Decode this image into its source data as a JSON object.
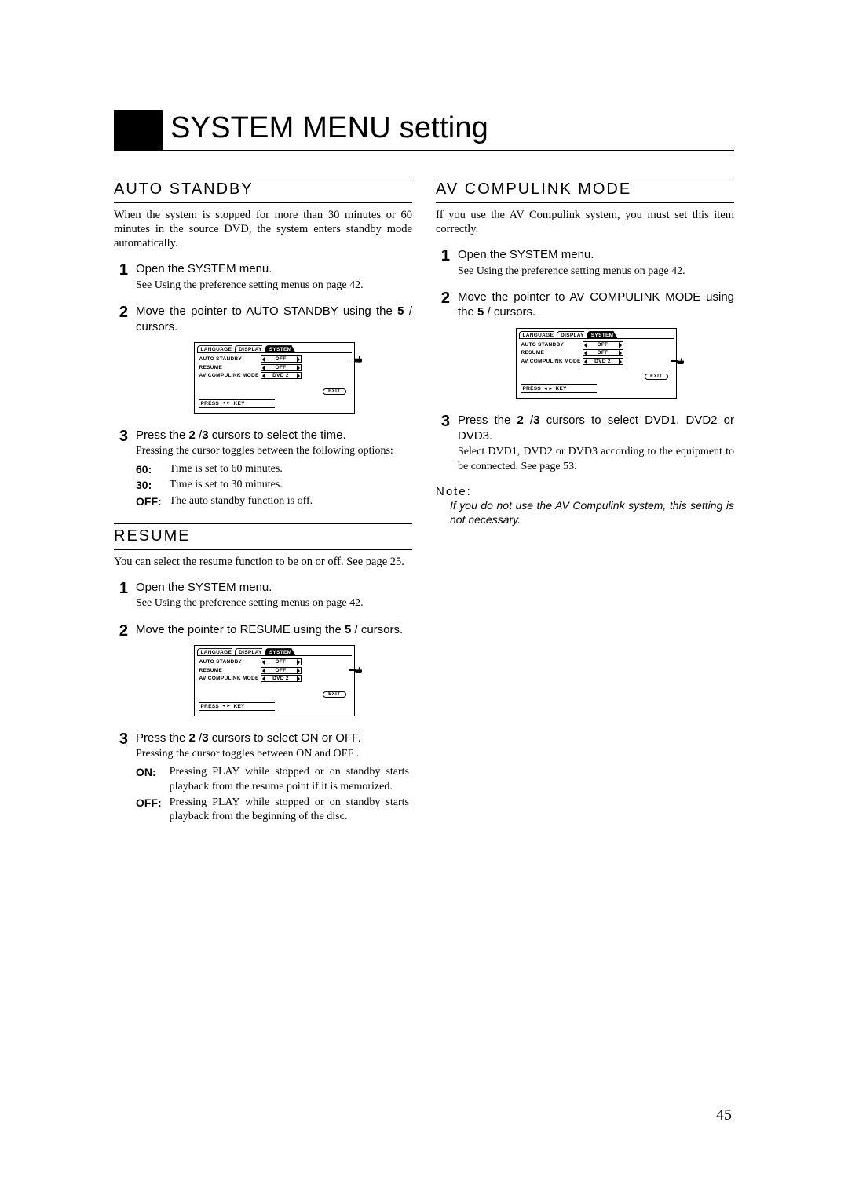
{
  "page_number": "45",
  "title": "SYSTEM MENU setting",
  "menu": {
    "tabs": [
      "LANGUAGE",
      "DISPLAY",
      "SYSTEM"
    ],
    "active_tab_index": 2,
    "rows": [
      {
        "label": "AUTO STANDBY",
        "value": "OFF"
      },
      {
        "label": "RESUME",
        "value": "OFF"
      },
      {
        "label": "AV COMPULINK MODE",
        "value": "DVD 2"
      }
    ],
    "exit": "EXIT",
    "footer": "PRESS",
    "footer_key": "KEY"
  },
  "left": {
    "auto_standby": {
      "title": "AUTO STANDBY",
      "intro": "When the system is stopped for more than 30 minutes or 60 minutes in the source DVD, the system enters standby mode automatically.",
      "step1_head": "Open the SYSTEM menu.",
      "step1_sub": "See  Using the preference setting menus  on page 42.",
      "step2_head_a": "Move the pointer to AUTO STANDBY using the ",
      "step2_head_b": "5",
      "step2_head_c": " /     cursors.",
      "step3_head_a": "Press the ",
      "step3_head_b": "2",
      "step3_head_c": " /",
      "step3_head_d": "3",
      "step3_head_e": "  cursors to select the time.",
      "step3_sub": "Pressing the cursor toggles between the following options:",
      "opts": [
        {
          "k": "60:",
          "v": "Time is set to 60 minutes."
        },
        {
          "k": "30:",
          "v": "Time is set to 30 minutes."
        },
        {
          "k": "OFF:",
          "v": "The auto standby function is off."
        }
      ],
      "pointer_row": 0
    },
    "resume": {
      "title": "RESUME",
      "intro": "You can select the resume function to be on or off. See page 25.",
      "step1_head": "Open the SYSTEM menu.",
      "step1_sub": "See  Using the preference setting menus  on page 42.",
      "step2_head_a": "Move the pointer to RESUME using the ",
      "step2_head_b": "5",
      "step2_head_c": " /   cursors.",
      "step3_head_a": "Press the ",
      "step3_head_b": "2",
      "step3_head_c": " /",
      "step3_head_d": "3",
      "step3_head_e": "  cursors to select ON or OFF.",
      "step3_sub": "Pressing the cursor toggles between  ON  and  OFF .",
      "opts": [
        {
          "k": "ON:",
          "v": "Pressing PLAY while stopped or on standby starts playback from the resume point if it is memorized."
        },
        {
          "k": "OFF:",
          "v": "Pressing PLAY while stopped or on standby starts playback from the beginning of the disc."
        }
      ],
      "pointer_row": 1
    }
  },
  "right": {
    "avc": {
      "title": "AV COMPULINK MODE",
      "intro": "If you use the AV Compulink system, you must set this item correctly.",
      "step1_head": "Open the SYSTEM menu.",
      "step1_sub": "See  Using the preference setting menus  on page 42.",
      "step2_head_a": "Move the pointer to AV COMPULINK MODE using the ",
      "step2_head_b": "5",
      "step2_head_c": " /     cursors.",
      "step3_head_a": "Press the ",
      "step3_head_b": "2",
      "step3_head_c": " /",
      "step3_head_d": "3",
      "step3_head_e": "  cursors to select DVD1, DVD2 or DVD3.",
      "step3_sub": "Select DVD1, DVD2 or DVD3 according to the equipment to be connected. See page 53.",
      "note_label": "Note:",
      "note_body": "If you do not use the AV Compulink system, this setting is not necessary.",
      "pointer_row": 2
    }
  }
}
